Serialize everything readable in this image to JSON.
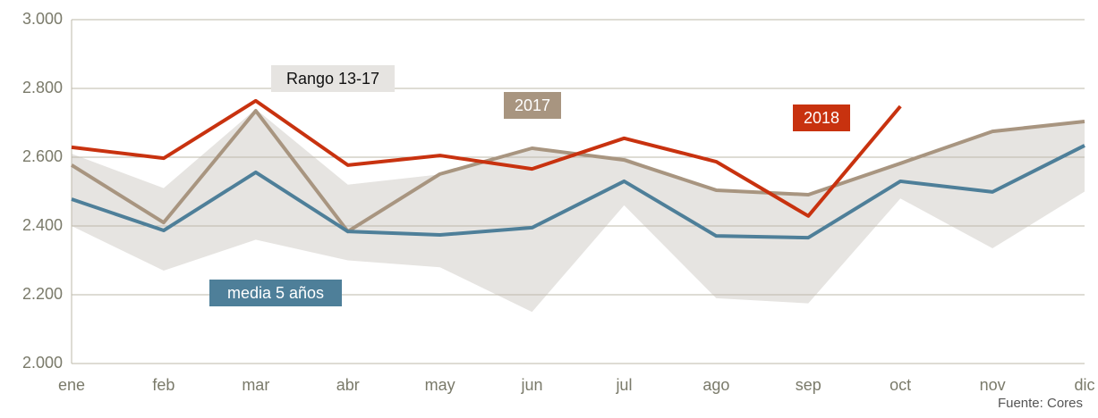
{
  "chart_data": {
    "type": "line",
    "categories": [
      "ene",
      "feb",
      "mar",
      "abr",
      "may",
      "jun",
      "jul",
      "ago",
      "sep",
      "oct",
      "nov",
      "dic"
    ],
    "ylim": [
      2000,
      3000
    ],
    "yticks": [
      {
        "value": 2000,
        "label": "2.000"
      },
      {
        "value": 2200,
        "label": "2.200"
      },
      {
        "value": 2400,
        "label": "2.400"
      },
      {
        "value": 2600,
        "label": "2.600"
      },
      {
        "value": 2800,
        "label": "2.800"
      },
      {
        "value": 3000,
        "label": "3.000"
      }
    ],
    "grid": true,
    "band": {
      "name": "Rango 13-17",
      "color": "#e6e4e1",
      "upper": [
        2610,
        2510,
        2740,
        2520,
        2550,
        2620,
        2600,
        2500,
        2490,
        2580,
        2680,
        2700
      ],
      "lower": [
        2400,
        2270,
        2360,
        2300,
        2280,
        2150,
        2460,
        2190,
        2175,
        2480,
        2335,
        2500
      ]
    },
    "series": [
      {
        "name": "2017",
        "color": "#a89580",
        "values": [
          2577,
          2410,
          2735,
          2384,
          2551,
          2626,
          2592,
          2504,
          2491,
          2582,
          2675,
          2704
        ]
      },
      {
        "name": "media 5 años",
        "color": "#4e7f99",
        "values": [
          2478,
          2387,
          2556,
          2384,
          2374,
          2395,
          2530,
          2371,
          2366,
          2530,
          2499,
          2634
        ]
      },
      {
        "name": "2018",
        "color": "#c8320f",
        "values": [
          2629,
          2597,
          2764,
          2577,
          2605,
          2566,
          2655,
          2587,
          2429,
          2748,
          null,
          null
        ]
      }
    ],
    "source": "Fuente: Cores"
  }
}
